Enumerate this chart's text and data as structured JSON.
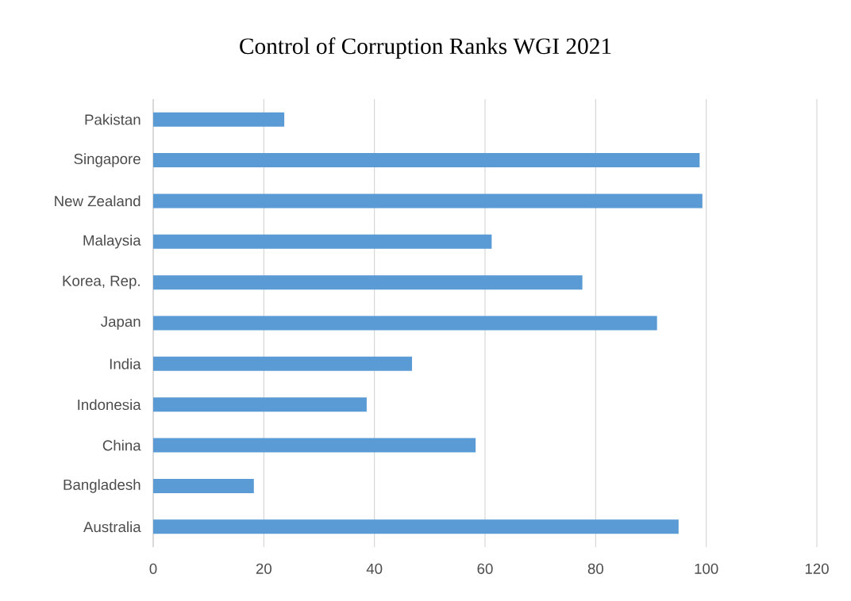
{
  "chart_data": {
    "type": "bar",
    "orientation": "horizontal",
    "title": "Control of Corruption Ranks WGI 2021",
    "categories": [
      "Pakistan",
      "Singapore",
      "New Zealand",
      "Malaysia",
      "Korea, Rep.",
      "Japan",
      "India",
      "Indonesia",
      "China",
      "Bangladesh",
      "Australia"
    ],
    "values": [
      23.7,
      98.8,
      99.3,
      61.2,
      77.6,
      91.1,
      46.8,
      38.6,
      58.3,
      18.2,
      95.0
    ],
    "color": "#5b9bd5",
    "xlim": [
      0,
      120
    ],
    "xticks": [
      0,
      20,
      40,
      60,
      80,
      100,
      120
    ],
    "grid": "x"
  }
}
